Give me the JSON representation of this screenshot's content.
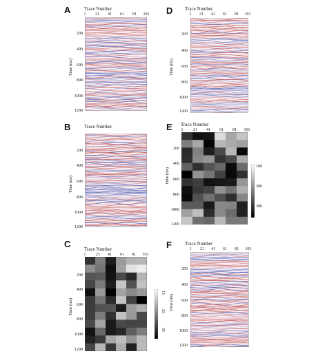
{
  "panels": [
    {
      "id": "A",
      "letter": "A",
      "kind": "seismic",
      "seed": 11
    },
    {
      "id": "B",
      "letter": "B",
      "kind": "seismic",
      "seed": 23
    },
    {
      "id": "C",
      "letter": "C",
      "kind": "gray",
      "seed": 37
    },
    {
      "id": "D",
      "letter": "D",
      "kind": "seismic",
      "seed": 41
    },
    {
      "id": "E",
      "letter": "E",
      "kind": "gray",
      "seed": 53
    },
    {
      "id": "F",
      "letter": "F",
      "kind": "seismic",
      "seed": 67
    }
  ],
  "labels": {
    "trace_number": "Trace Number",
    "time_ms": "Time (ms)",
    "x_ticks": [
      "1",
      "21",
      "41",
      "61",
      "81",
      "101"
    ],
    "y_ticks": [
      "200",
      "400",
      "600",
      "800",
      "1000",
      "1200"
    ],
    "colorbar_c": [
      "15",
      "25",
      "35"
    ],
    "colorbar_e": [
      "100",
      "200",
      "300"
    ]
  },
  "colors": {
    "seismic_pos": "#c0504d",
    "seismic_neg": "#4a5ab0",
    "seismic_bg": "#f6eef4"
  }
}
